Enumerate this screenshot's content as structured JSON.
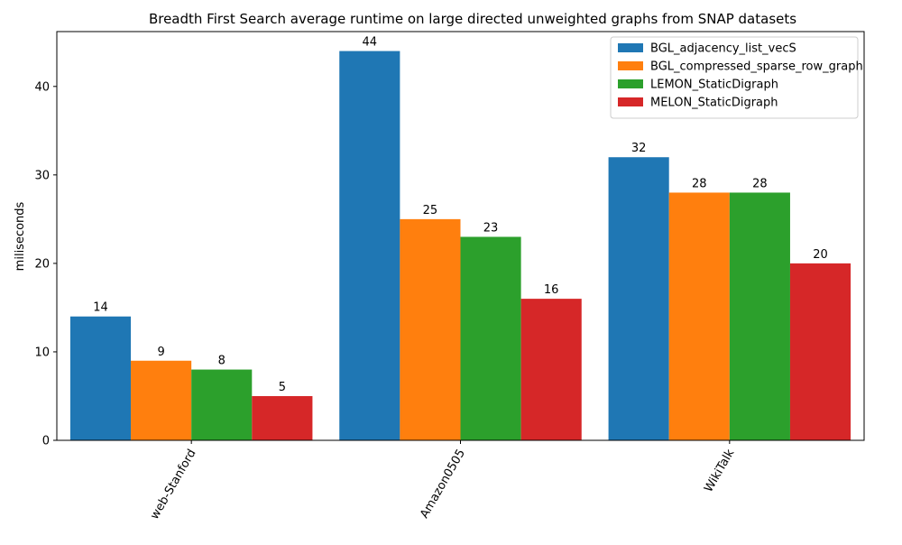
{
  "chart_data": {
    "type": "bar",
    "title": "Breadth First Search average runtime on large directed unweighted graphs from SNAP datasets",
    "xlabel": "",
    "ylabel": "miliseconds",
    "categories": [
      "web-Stanford",
      "Amazon0505",
      "WikiTalk"
    ],
    "series": [
      {
        "name": "BGL_adjacency_list_vecS",
        "color": "#1f77b4",
        "values": [
          14,
          44,
          32
        ]
      },
      {
        "name": "BGL_compressed_sparse_row_graph",
        "color": "#ff7f0e",
        "values": [
          9,
          25,
          28
        ]
      },
      {
        "name": "LEMON_StaticDigraph",
        "color": "#2ca02c",
        "values": [
          8,
          23,
          28
        ]
      },
      {
        "name": "MELON_StaticDigraph",
        "color": "#d62728",
        "values": [
          5,
          16,
          20
        ]
      }
    ],
    "ylim": [
      0,
      46.2
    ],
    "yticks": [
      0,
      10,
      20,
      30,
      40
    ],
    "xtick_rotation_deg": 60,
    "grid": false,
    "legend_position": "top-right",
    "data_labels": true
  }
}
